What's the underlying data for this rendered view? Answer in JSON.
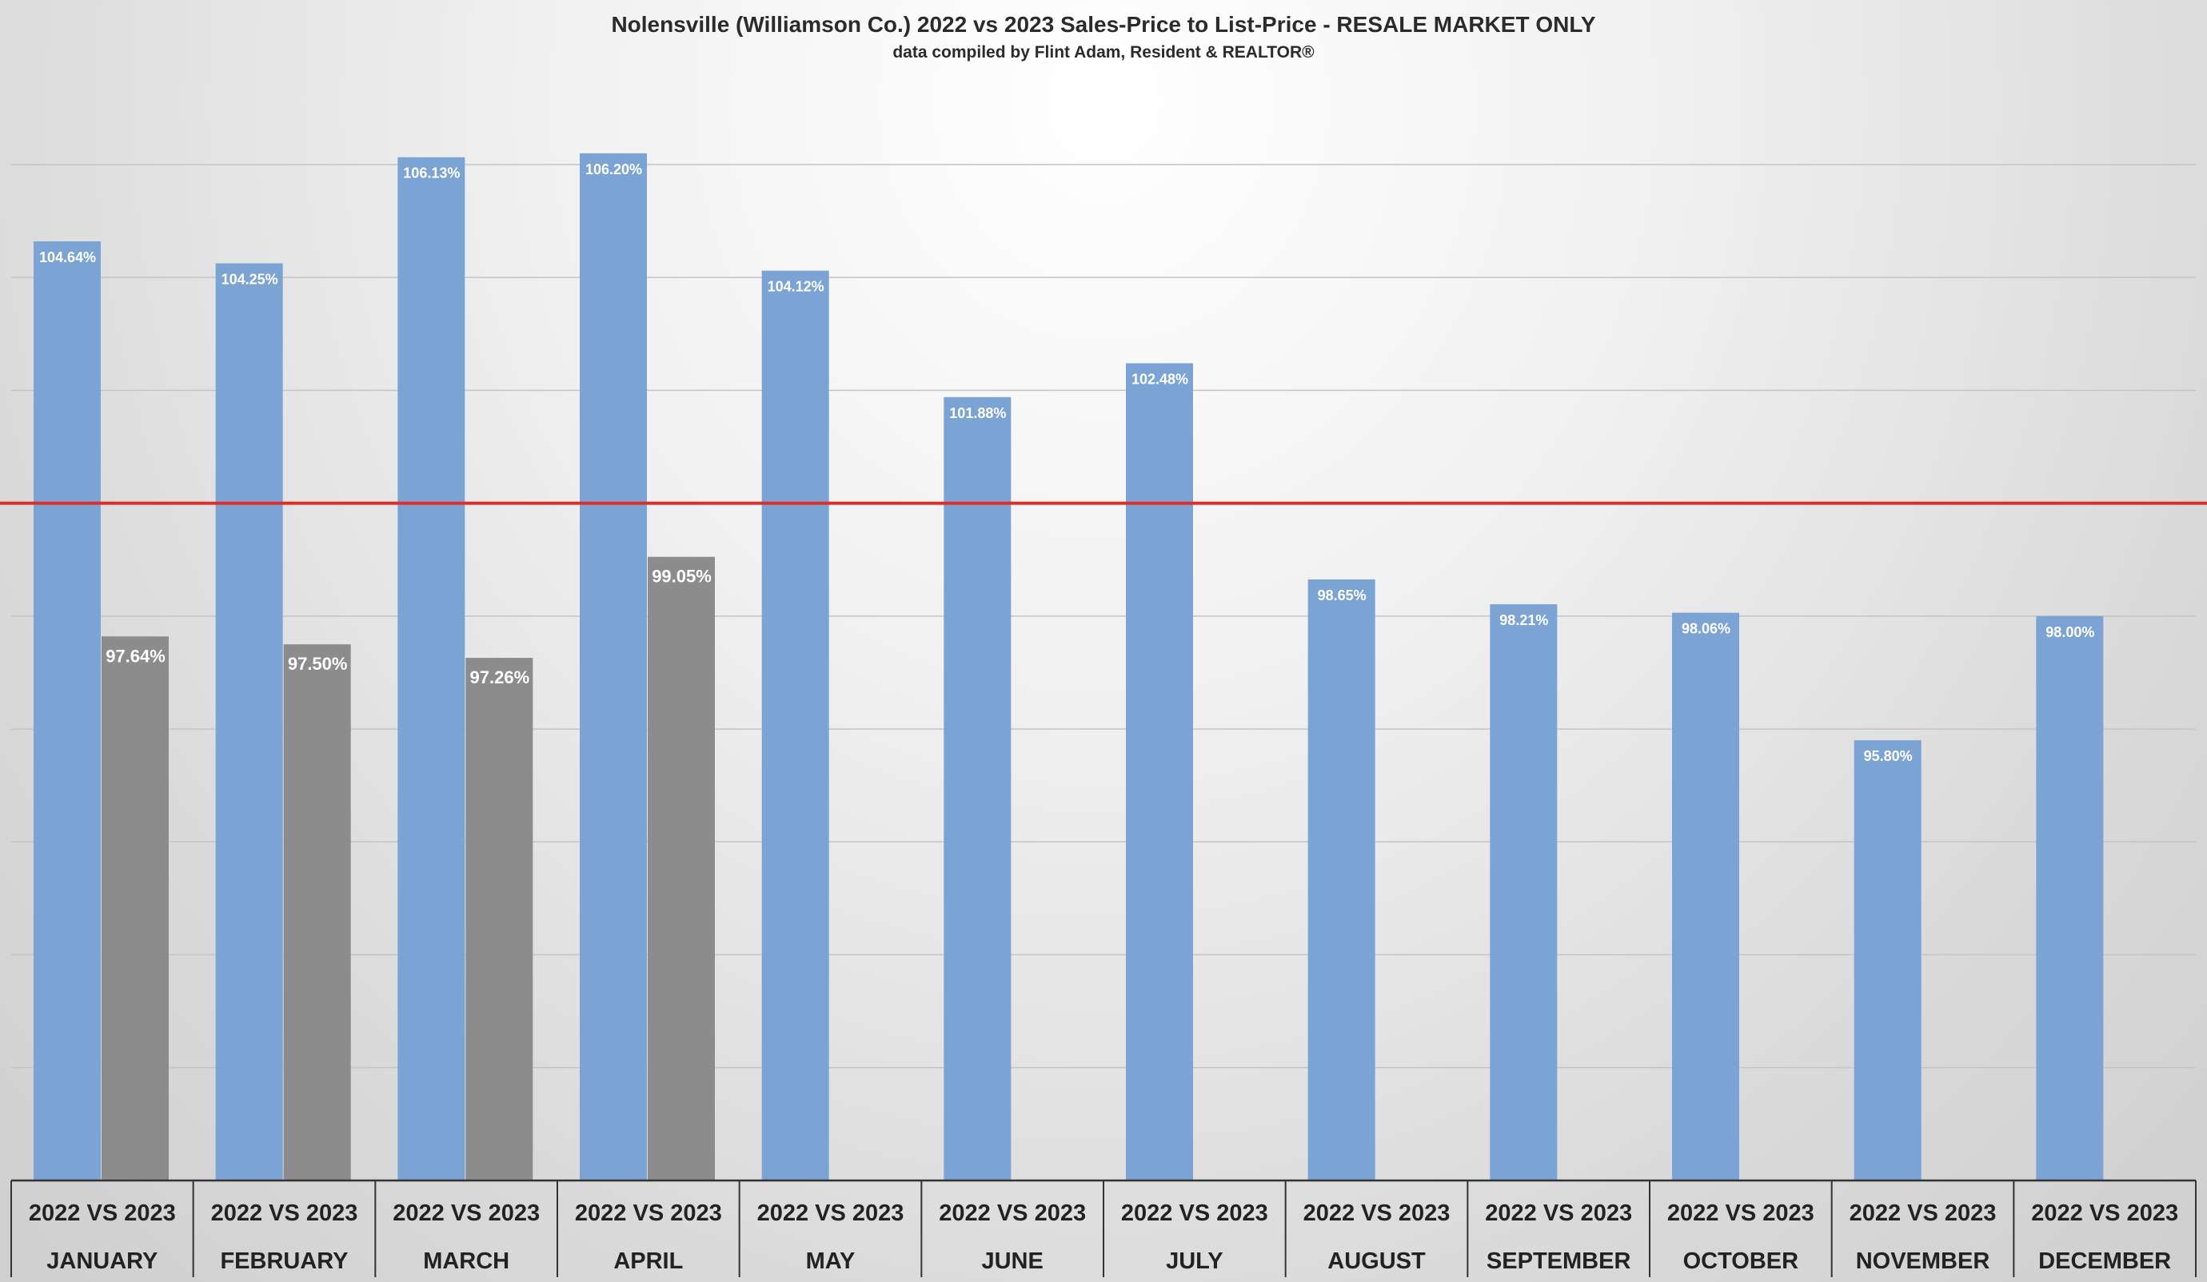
{
  "chart_data": {
    "type": "bar",
    "title": "Nolensville (Williamson Co.) 2022 vs 2023 Sales-Price to List-Price - RESALE MARKET ONLY",
    "subtitle": "data compiled by Flint Adam, Resident & REALTOR®",
    "categories": [
      "JANUARY",
      "FEBRUARY",
      "MARCH",
      "APRIL",
      "MAY",
      "JUNE",
      "JULY",
      "AUGUST",
      "SEPTEMBER",
      "OCTOBER",
      "NOVEMBER",
      "DECEMBER"
    ],
    "category_header": "2022 VS 2023",
    "series": [
      {
        "values": [
          104.64,
          104.25,
          106.13,
          106.2,
          104.12,
          101.88,
          102.48,
          98.65,
          98.21,
          98.06,
          95.8,
          98.0
        ],
        "labels": [
          "104.64%",
          "104.25%",
          "106.13%",
          "106.20%",
          "104.12%",
          "101.88%",
          "102.48%",
          "98.65%",
          "98.21%",
          "98.06%",
          "95.80%",
          "98.00%"
        ],
        "color": "#7ba3d4"
      },
      {
        "values": [
          97.64,
          97.5,
          97.26,
          99.05,
          null,
          null,
          null,
          null,
          null,
          null,
          null,
          null
        ],
        "labels": [
          "97.64%",
          "97.50%",
          "97.26%",
          "99.05%",
          "",
          "",
          "",
          "",
          "",
          "",
          "",
          ""
        ],
        "color": "#8c8c8c"
      }
    ],
    "ylim": [
      88,
      107.5
    ],
    "reference_line": {
      "value": 100,
      "color": "#d9302c"
    },
    "grid": true,
    "legend": "none"
  }
}
